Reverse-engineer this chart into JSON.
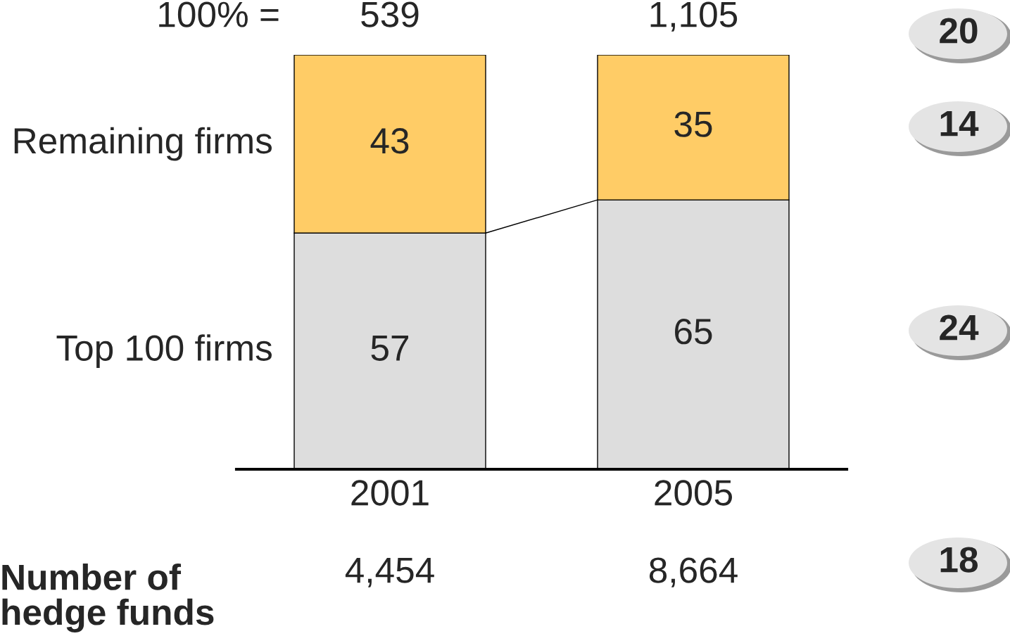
{
  "chart_data": {
    "type": "bar",
    "stacked": true,
    "categories": [
      "2001",
      "2005"
    ],
    "series": [
      {
        "name": "Top 100 firms",
        "color": "#dddddd",
        "values": [
          57,
          65
        ]
      },
      {
        "name": "Remaining firms",
        "color": "#ffcc66",
        "values": [
          43,
          35
        ]
      }
    ],
    "ylim": [
      0,
      100
    ],
    "tick_labels": "x",
    "data_labels": true,
    "annotations": [
      "100% =",
      "Number of\nhedge funds",
      "4,454",
      "8,664",
      "20",
      "14",
      "24",
      "18",
      "539",
      "1,105"
    ]
  }
}
